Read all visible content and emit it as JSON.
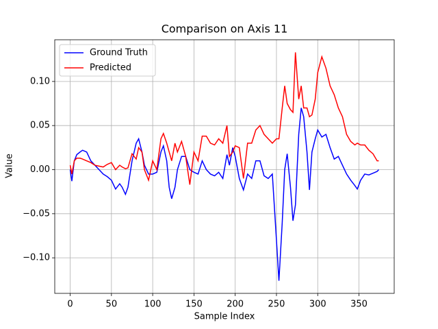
{
  "chart_data": {
    "type": "line",
    "title": "Comparison on Axis 11",
    "xlabel": "Sample Index",
    "ylabel": "Value",
    "x": [
      0,
      2,
      5,
      8,
      12,
      15,
      20,
      25,
      30,
      35,
      40,
      45,
      50,
      55,
      60,
      63,
      67,
      70,
      75,
      80,
      83,
      87,
      90,
      95,
      100,
      105,
      110,
      113,
      117,
      120,
      123,
      127,
      130,
      135,
      140,
      145,
      150,
      155,
      160,
      165,
      170,
      175,
      180,
      185,
      190,
      193,
      197,
      200,
      205,
      210,
      215,
      220,
      225,
      230,
      235,
      240,
      245,
      250,
      253,
      257,
      260,
      263,
      267,
      270,
      273,
      277,
      280,
      283,
      287,
      290,
      293,
      297,
      300,
      305,
      310,
      315,
      320,
      325,
      330,
      335,
      340,
      345,
      348,
      352,
      357,
      362,
      367,
      372,
      374
    ],
    "series": [
      {
        "name": "Ground Truth",
        "color": "#0000ff",
        "values": [
          0,
          -0.013,
          0.01,
          0.017,
          0.02,
          0.022,
          0.02,
          0.01,
          0.005,
          0,
          -0.005,
          -0.008,
          -0.012,
          -0.022,
          -0.016,
          -0.02,
          -0.028,
          -0.02,
          0.01,
          0.03,
          0.035,
          0.02,
          0.005,
          -0.005,
          -0.005,
          -0.003,
          0.02,
          0.027,
          0.01,
          -0.02,
          -0.033,
          -0.02,
          0,
          0.015,
          0.015,
          0,
          -0.003,
          -0.005,
          0.01,
          0,
          -0.005,
          -0.007,
          -0.003,
          -0.01,
          0.017,
          0.005,
          0.025,
          0.015,
          -0.01,
          -0.023,
          -0.005,
          -0.01,
          0.01,
          0.01,
          -0.007,
          -0.01,
          -0.005,
          -0.08,
          -0.126,
          -0.06,
          0,
          0.018,
          -0.02,
          -0.058,
          -0.04,
          0.04,
          0.07,
          0.06,
          0.02,
          -0.023,
          0.02,
          0.035,
          0.045,
          0.037,
          0.04,
          0.025,
          0.012,
          0.015,
          0.005,
          -0.005,
          -0.012,
          -0.018,
          -0.022,
          -0.012,
          -0.005,
          -0.006,
          -0.004,
          -0.002,
          0
        ]
      },
      {
        "name": "Predicted",
        "color": "#ff0000",
        "values": [
          0.005,
          -0.005,
          0.01,
          0.013,
          0.013,
          0.012,
          0.01,
          0.008,
          0.005,
          0.004,
          0.003,
          0.006,
          0.008,
          0,
          0.005,
          0.003,
          0.001,
          0.002,
          0.018,
          0.012,
          0.025,
          0.02,
          0,
          -0.012,
          0.01,
          0,
          0.035,
          0.041,
          0.03,
          0.02,
          0.01,
          0.03,
          0.02,
          0.032,
          0.015,
          -0.017,
          0.02,
          0.01,
          0.038,
          0.038,
          0.03,
          0.028,
          0.035,
          0.03,
          0.05,
          0.015,
          0.02,
          0.027,
          0.025,
          -0.01,
          0.03,
          0.03,
          0.045,
          0.05,
          0.04,
          0.035,
          0.03,
          0.035,
          0.035,
          0.07,
          0.095,
          0.075,
          0.068,
          0.065,
          0.133,
          0.08,
          0.095,
          0.07,
          0.07,
          0.06,
          0.062,
          0.08,
          0.11,
          0.128,
          0.115,
          0.095,
          0.085,
          0.07,
          0.06,
          0.04,
          0.032,
          0.028,
          0.03,
          0.028,
          0.028,
          0.022,
          0.018,
          0.01,
          0.01
        ]
      }
    ],
    "xlim": [
      -18.7,
      392.7
    ],
    "ylim": [
      -0.1403,
      0.1473
    ],
    "xticks": [
      0,
      50,
      100,
      150,
      200,
      250,
      300,
      350
    ],
    "yticks": [
      {
        "value": -0.1,
        "label": "−0.10"
      },
      {
        "value": -0.05,
        "label": "−0.05"
      },
      {
        "value": 0,
        "label": "0.00"
      },
      {
        "value": 0.05,
        "label": "0.05"
      },
      {
        "value": 0.1,
        "label": "0.10"
      }
    ],
    "grid": true,
    "legend": "upper left"
  }
}
